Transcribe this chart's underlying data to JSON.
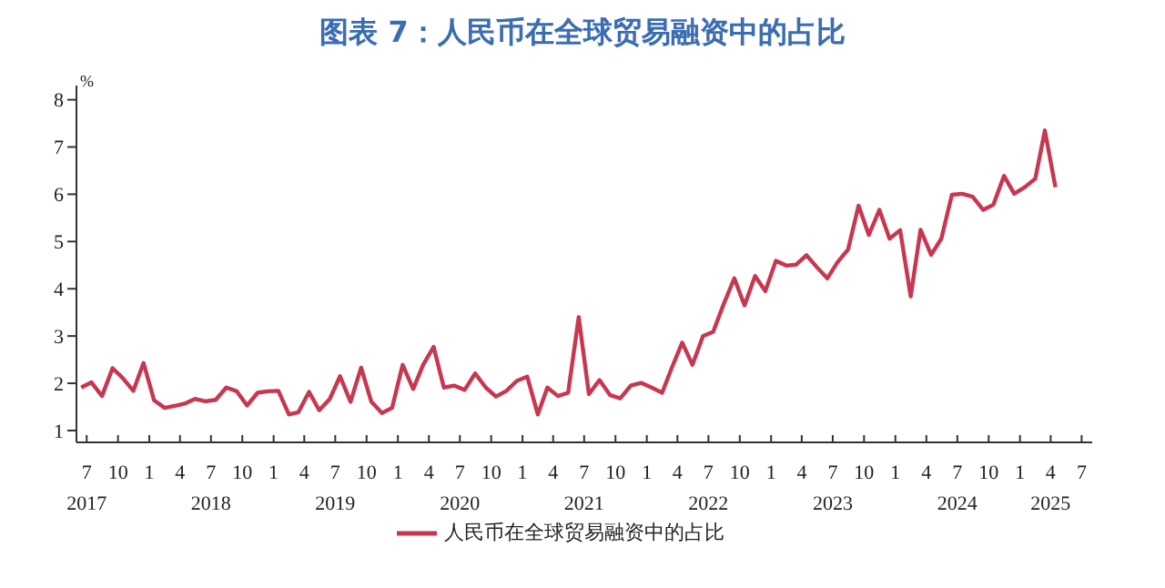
{
  "chart_data": {
    "type": "line",
    "title": "图表 7：人民币在全球贸易融资中的占比",
    "ylabel": "%",
    "x": [
      "2017-06-15",
      "2017-07-15",
      "2017-08-15",
      "2017-09-15",
      "2017-10-15",
      "2017-11-15",
      "2017-12-15",
      "2018-01-15",
      "2018-02-15",
      "2018-03-15",
      "2018-04-15",
      "2018-05-15",
      "2018-06-15",
      "2018-07-15",
      "2018-08-15",
      "2018-09-15",
      "2018-10-15",
      "2018-11-15",
      "2018-12-15",
      "2019-01-15",
      "2019-02-15",
      "2019-03-15",
      "2019-04-15",
      "2019-05-15",
      "2019-06-15",
      "2019-07-15",
      "2019-08-15",
      "2019-09-15",
      "2019-10-15",
      "2019-11-15",
      "2019-12-15",
      "2020-01-15",
      "2020-02-15",
      "2020-03-15",
      "2020-04-15",
      "2020-05-15",
      "2020-06-15",
      "2020-07-15",
      "2020-08-15",
      "2020-09-15",
      "2020-10-15",
      "2020-11-15",
      "2020-12-15",
      "2021-01-15",
      "2021-02-15",
      "2021-03-15",
      "2021-04-15",
      "2021-05-15",
      "2021-06-15",
      "2021-07-15",
      "2021-08-15",
      "2021-09-15",
      "2021-10-15",
      "2021-11-15",
      "2021-12-15",
      "2022-01-15",
      "2022-02-15",
      "2022-03-15",
      "2022-04-15",
      "2022-05-15",
      "2022-06-15",
      "2022-07-15",
      "2022-08-15",
      "2022-09-15",
      "2022-10-15",
      "2022-11-15",
      "2022-12-15",
      "2023-01-15",
      "2023-02-15",
      "2023-03-15",
      "2023-04-15",
      "2023-05-15",
      "2023-06-15",
      "2023-07-15",
      "2023-08-15",
      "2023-09-15",
      "2023-10-15",
      "2023-11-15",
      "2023-12-15",
      "2024-01-15",
      "2024-02-15",
      "2024-03-15",
      "2024-04-15",
      "2024-05-15",
      "2024-06-15",
      "2024-07-15",
      "2024-08-15",
      "2024-09-15",
      "2024-10-15",
      "2024-11-15",
      "2024-12-15",
      "2025-01-15",
      "2025-02-15",
      "2025-03-15",
      "2025-04-15"
    ],
    "series": [
      {
        "name": "人民币在全球贸易融资中的占比",
        "color": "#c8374f",
        "values": [
          1.91,
          2.02,
          1.73,
          2.32,
          2.11,
          1.84,
          2.43,
          1.64,
          1.48,
          1.52,
          1.57,
          1.67,
          1.62,
          1.65,
          1.91,
          1.83,
          1.53,
          1.8,
          1.83,
          1.84,
          1.34,
          1.39,
          1.82,
          1.43,
          1.67,
          2.15,
          1.61,
          2.33,
          1.61,
          1.37,
          1.48,
          2.39,
          1.88,
          2.39,
          2.77,
          1.91,
          1.95,
          1.86,
          2.21,
          1.91,
          1.72,
          1.84,
          2.05,
          2.14,
          1.34,
          1.91,
          1.73,
          1.8,
          3.4,
          1.77,
          2.07,
          1.75,
          1.68,
          1.95,
          2.01,
          1.91,
          1.8,
          2.32,
          2.86,
          2.39,
          3.0,
          3.09,
          3.68,
          4.22,
          3.65,
          4.27,
          3.95,
          4.59,
          4.49,
          4.51,
          4.71,
          4.46,
          4.22,
          4.56,
          4.83,
          5.76,
          5.14,
          5.67,
          5.06,
          5.24,
          3.84,
          5.25,
          4.72,
          5.06,
          5.99,
          6.01,
          5.95,
          5.67,
          5.78,
          6.39,
          6.01,
          6.15,
          6.33,
          7.35,
          6.15
        ]
      }
    ],
    "xlim": [
      "2017-06-01",
      "2025-08-01"
    ],
    "xticks": [
      {
        "value": "2017-07",
        "label": "7\n2017"
      },
      {
        "value": "2017-10",
        "label": "10"
      },
      {
        "value": "2018-01",
        "label": "1"
      },
      {
        "value": "2018-04",
        "label": "4"
      },
      {
        "value": "2018-07",
        "label": "7\n2018"
      },
      {
        "value": "2018-10",
        "label": "10"
      },
      {
        "value": "2019-01",
        "label": "1"
      },
      {
        "value": "2019-04",
        "label": "4"
      },
      {
        "value": "2019-07",
        "label": "7\n2019"
      },
      {
        "value": "2019-10",
        "label": "10"
      },
      {
        "value": "2020-01",
        "label": "1"
      },
      {
        "value": "2020-04",
        "label": "4"
      },
      {
        "value": "2020-07",
        "label": "7\n2020"
      },
      {
        "value": "2020-10",
        "label": "10"
      },
      {
        "value": "2021-01",
        "label": "1"
      },
      {
        "value": "2021-04",
        "label": "4"
      },
      {
        "value": "2021-07",
        "label": "7\n2021"
      },
      {
        "value": "2021-10",
        "label": "10"
      },
      {
        "value": "2022-01",
        "label": "1"
      },
      {
        "value": "2022-04",
        "label": "4"
      },
      {
        "value": "2022-07",
        "label": "7\n2022"
      },
      {
        "value": "2022-10",
        "label": "10"
      },
      {
        "value": "2023-01",
        "label": "1"
      },
      {
        "value": "2023-04",
        "label": "4"
      },
      {
        "value": "2023-07",
        "label": "7\n2023"
      },
      {
        "value": "2023-10",
        "label": "10"
      },
      {
        "value": "2024-01",
        "label": "1"
      },
      {
        "value": "2024-04",
        "label": "4"
      },
      {
        "value": "2024-07",
        "label": "7\n2024"
      },
      {
        "value": "2024-10",
        "label": "10"
      },
      {
        "value": "2025-01",
        "label": "1"
      },
      {
        "value": "2025-04",
        "label": "4\n2025"
      },
      {
        "value": "2025-07",
        "label": "7"
      }
    ],
    "ylim": [
      0.75,
      8.3
    ],
    "yticks": [
      1,
      2,
      3,
      4,
      5,
      6,
      7,
      8
    ],
    "grid": false,
    "legend": "bottom",
    "marker": "none",
    "line_style": "solid"
  }
}
